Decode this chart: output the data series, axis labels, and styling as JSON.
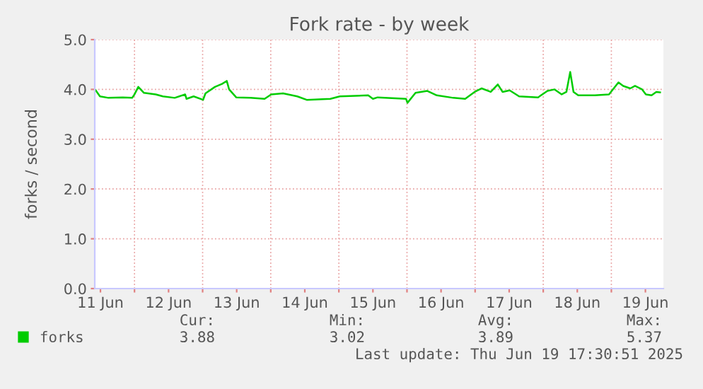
{
  "chart_data": {
    "type": "line",
    "title": "Fork rate - by week",
    "ylabel": "forks / second",
    "x": [
      "2025-06-11T10:20",
      "2025-06-11T11:50",
      "2025-06-11T14:50",
      "2025-06-11T19:50",
      "2025-06-11T23:10",
      "2025-06-12T00:00",
      "2025-06-12T01:20",
      "2025-06-12T03:20",
      "2025-06-12T07:30",
      "2025-06-12T10:00",
      "2025-06-12T14:10",
      "2025-06-12T17:50",
      "2025-06-12T18:20",
      "2025-06-12T20:50",
      "2025-06-13T00:10",
      "2025-06-13T01:00",
      "2025-06-13T04:20",
      "2025-06-13T06:50",
      "2025-06-13T08:30",
      "2025-06-13T09:20",
      "2025-06-13T11:50",
      "2025-06-13T16:50",
      "2025-06-13T21:50",
      "2025-06-14T00:10",
      "2025-06-14T04:20",
      "2025-06-14T09:20",
      "2025-06-14T12:40",
      "2025-06-14T21:00",
      "2025-06-15T00:20",
      "2025-06-15T10:20",
      "2025-06-15T12:00",
      "2025-06-15T13:40",
      "2025-06-15T23:40",
      "2025-06-16T00:10",
      "2025-06-16T03:00",
      "2025-06-16T07:10",
      "2025-06-16T10:30",
      "2025-06-16T16:20",
      "2025-06-16T20:30",
      "2025-06-16T23:50",
      "2025-06-17T02:20",
      "2025-06-17T05:30",
      "2025-06-17T08:00",
      "2025-06-17T09:40",
      "2025-06-17T12:10",
      "2025-06-17T15:30",
      "2025-06-17T22:10",
      "2025-06-18T01:30",
      "2025-06-18T04:00",
      "2025-06-18T06:30",
      "2025-06-18T08:10",
      "2025-06-18T09:30",
      "2025-06-18T10:40",
      "2025-06-18T12:20",
      "2025-06-18T18:10",
      "2025-06-18T23:10",
      "2025-06-19T02:30",
      "2025-06-19T04:10",
      "2025-06-19T06:40",
      "2025-06-19T08:20",
      "2025-06-19T10:50",
      "2025-06-19T12:10",
      "2025-06-19T14:10",
      "2025-06-19T15:50",
      "2025-06-19T17:10"
    ],
    "series": [
      {
        "name": "forks",
        "color": "#00cc00",
        "values": [
          3.98,
          3.86,
          3.83,
          3.84,
          3.83,
          3.9,
          4.05,
          3.93,
          3.9,
          3.86,
          3.83,
          3.9,
          3.81,
          3.86,
          3.79,
          3.92,
          4.05,
          4.11,
          4.17,
          4.0,
          3.84,
          3.83,
          3.81,
          3.9,
          3.92,
          3.86,
          3.79,
          3.81,
          3.86,
          3.88,
          3.81,
          3.84,
          3.81,
          3.73,
          3.93,
          3.97,
          3.88,
          3.83,
          3.81,
          3.95,
          4.02,
          3.95,
          4.1,
          3.95,
          3.98,
          3.86,
          3.84,
          3.97,
          4.0,
          3.9,
          3.95,
          4.35,
          3.95,
          3.88,
          3.88,
          3.9,
          4.14,
          4.07,
          4.02,
          4.07,
          4.0,
          3.9,
          3.88,
          3.95,
          3.94
        ]
      }
    ],
    "xlim": [
      "2025-06-11T10:00",
      "2025-06-19T18:20"
    ],
    "xticks": [
      {
        "value": "2025-06-11T12:00",
        "label": "11 Jun"
      },
      {
        "value": "2025-06-12T12:00",
        "label": "12 Jun"
      },
      {
        "value": "2025-06-13T12:00",
        "label": "13 Jun"
      },
      {
        "value": "2025-06-14T12:00",
        "label": "14 Jun"
      },
      {
        "value": "2025-06-15T12:00",
        "label": "15 Jun"
      },
      {
        "value": "2025-06-16T12:00",
        "label": "16 Jun"
      },
      {
        "value": "2025-06-17T12:00",
        "label": "17 Jun"
      },
      {
        "value": "2025-06-18T12:00",
        "label": "18 Jun"
      },
      {
        "value": "2025-06-19T12:00",
        "label": "19 Jun"
      },
      {
        "value": "2025-06-12T00:00",
        "label": null
      },
      {
        "value": "2025-06-13T00:00",
        "label": null
      },
      {
        "value": "2025-06-14T00:00",
        "label": null
      },
      {
        "value": "2025-06-15T00:00",
        "label": null
      },
      {
        "value": "2025-06-16T00:00",
        "label": null
      },
      {
        "value": "2025-06-17T00:00",
        "label": null
      },
      {
        "value": "2025-06-18T00:00",
        "label": null
      },
      {
        "value": "2025-06-19T00:00",
        "label": null
      }
    ],
    "ylim": [
      0,
      5
    ],
    "yticks": [
      {
        "value": 0,
        "label": "0.0"
      },
      {
        "value": 1,
        "label": "1.0"
      },
      {
        "value": 2,
        "label": "2.0"
      },
      {
        "value": 3,
        "label": "3.0"
      },
      {
        "value": 4,
        "label": "4.0"
      },
      {
        "value": 5,
        "label": "5.0"
      }
    ],
    "grid": true,
    "legend": "bottom left",
    "marker": "none",
    "line_style": "solid",
    "annotations": [
      "Cur:",
      "Min:",
      "Avg:",
      "Max:",
      "3.88",
      "3.02",
      "3.89",
      "5.37",
      "Last update: Thu Jun 19 17:30:51 2025"
    ]
  }
}
